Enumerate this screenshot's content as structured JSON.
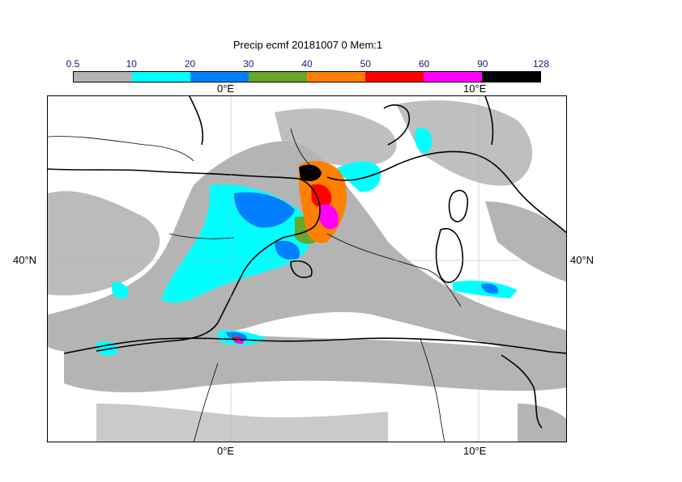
{
  "title": "Precip ecmf 20181007 0 Mem:1",
  "colorbar": {
    "ticks": [
      "0.5",
      "10",
      "20",
      "30",
      "40",
      "50",
      "60",
      "90",
      "128"
    ],
    "colors": [
      "#b4b4b4",
      "#00ffff",
      "#0080ff",
      "#66a62a",
      "#ff8000",
      "#ff0000",
      "#ff00ff",
      "#000000"
    ]
  },
  "axes": {
    "lon_labels": [
      "0°E",
      "10°E"
    ],
    "lat_labels": [
      "40°N"
    ]
  }
}
